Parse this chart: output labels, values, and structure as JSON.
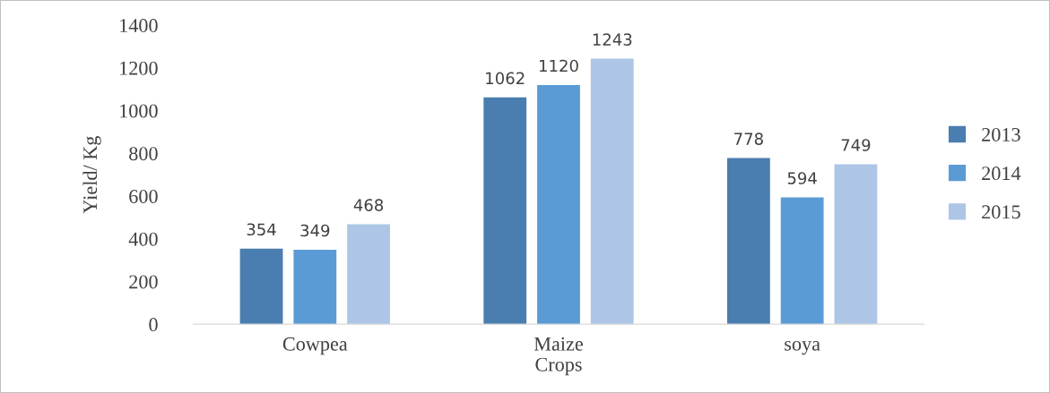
{
  "chart_data": {
    "type": "bar",
    "xlabel": "Crops",
    "ylabel": "Yield/ Kg",
    "categories": [
      "Cowpea",
      "Maize",
      "soya"
    ],
    "series": [
      {
        "name": "2013",
        "color": "#4a7eb0",
        "values": [
          354,
          1062,
          778
        ]
      },
      {
        "name": "2014",
        "color": "#5b9bd5",
        "values": [
          349,
          1120,
          594
        ]
      },
      {
        "name": "2015",
        "color": "#adc6e5",
        "values": [
          468,
          1243,
          749
        ]
      }
    ],
    "ylim": [
      0,
      1400
    ],
    "yticks": [
      0,
      200,
      400,
      600,
      800,
      1000,
      1200,
      1400
    ],
    "grid": false,
    "legend": "right",
    "data_labels": true
  }
}
